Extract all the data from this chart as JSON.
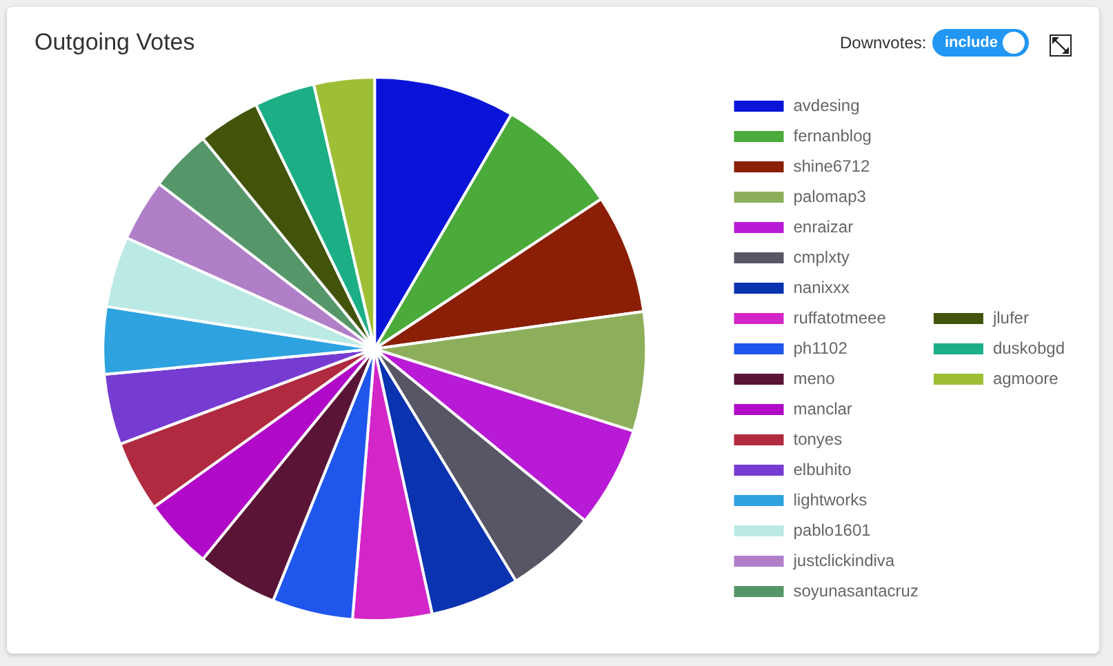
{
  "chart_data": {
    "type": "pie",
    "title": "Outgoing Votes",
    "categories": [
      "avdesing",
      "fernanblog",
      "shine6712",
      "palomap3",
      "enraizar",
      "cmplxty",
      "nanixxx",
      "ruffatotmeee",
      "ph1102",
      "meno",
      "manclar",
      "tonyes",
      "elbuhito",
      "lightworks",
      "pablo1601",
      "justclickindiva",
      "soyunasantacruz",
      "jlufer",
      "duskobgd",
      "agmoore"
    ],
    "values": [
      8.4,
      7.3,
      7.1,
      7.1,
      6.0,
      5.4,
      5.3,
      4.7,
      4.8,
      4.8,
      4.2,
      4.2,
      4.2,
      4.0,
      4.2,
      3.7,
      3.7,
      3.7,
      3.6,
      3.6
    ],
    "colors": [
      "#0a14d8",
      "#4aaa3a",
      "#8a1f05",
      "#8daf5c",
      "#b91ad6",
      "#575665",
      "#0a33b0",
      "#d326c8",
      "#1f57ec",
      "#5a1536",
      "#b00ac8",
      "#b02b40",
      "#763cd2",
      "#2ea3e0",
      "#bbeae4",
      "#b07fc8",
      "#56976a",
      "#42540a",
      "#1caf85",
      "#9ebf35"
    ],
    "legend": "right",
    "annotations": [
      "Downvotes:",
      "include"
    ]
  }
}
